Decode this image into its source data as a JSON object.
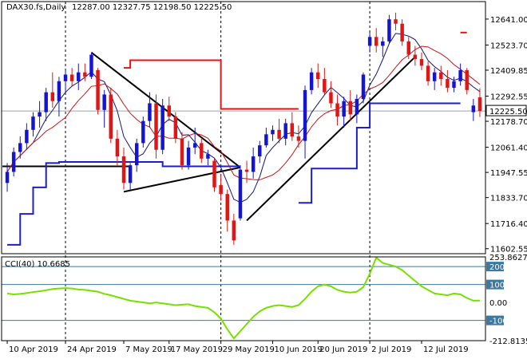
{
  "header": {
    "symbol": "DAX30.fs,Daily",
    "ohlc": "12287.00 12327.75 12198.50 12225.50"
  },
  "colors": {
    "bull": "#1414d2",
    "bear": "#e01616",
    "fast_ma": "#141478",
    "slow_ma": "#c81414",
    "support": "#1e1ec8",
    "resistance": "#e01616",
    "cci": "#78e000",
    "cci_level": "#3c78a0"
  },
  "chart_data": [
    {
      "type": "candlestick",
      "title": "DAX30.fs,Daily",
      "last_price": "12225.50",
      "ylim": [
        11580,
        12720
      ],
      "y_ticks": [
        "12641.00",
        "12523.70",
        "12409.85",
        "12292.55",
        "12178.70",
        "12061.40",
        "11947.55",
        "11833.70",
        "11716.40",
        "11602.55"
      ],
      "x_ticks": [
        "10 Apr 2019",
        "24 Apr 2019",
        "7 May 2019",
        "17 May 2019",
        "29 May 2019",
        "10 Jun 2019",
        "20 Jun 2019",
        "2 Jul 2019",
        "12 Jul 2019"
      ],
      "candles": [
        {
          "o": 11900,
          "h": 11990,
          "l": 11860,
          "c": 11950
        },
        {
          "o": 11950,
          "h": 12060,
          "l": 11930,
          "c": 12040
        },
        {
          "o": 12040,
          "h": 12110,
          "l": 12010,
          "c": 12080
        },
        {
          "o": 12080,
          "h": 12170,
          "l": 12050,
          "c": 12140
        },
        {
          "o": 12140,
          "h": 12220,
          "l": 12110,
          "c": 12200
        },
        {
          "o": 12200,
          "h": 12270,
          "l": 12150,
          "c": 12220
        },
        {
          "o": 12220,
          "h": 12330,
          "l": 12180,
          "c": 12310
        },
        {
          "o": 12310,
          "h": 12400,
          "l": 12240,
          "c": 12270
        },
        {
          "o": 12270,
          "h": 12380,
          "l": 12200,
          "c": 12360
        },
        {
          "o": 12360,
          "h": 12410,
          "l": 12300,
          "c": 12390
        },
        {
          "o": 12390,
          "h": 12420,
          "l": 12340,
          "c": 12360
        },
        {
          "o": 12360,
          "h": 12440,
          "l": 12320,
          "c": 12400
        },
        {
          "o": 12400,
          "h": 12440,
          "l": 12360,
          "c": 12380
        },
        {
          "o": 12380,
          "h": 12490,
          "l": 12370,
          "c": 12480
        },
        {
          "o": 12410,
          "h": 12420,
          "l": 12210,
          "c": 12230
        },
        {
          "o": 12230,
          "h": 12320,
          "l": 12150,
          "c": 12300
        },
        {
          "o": 12300,
          "h": 12330,
          "l": 12080,
          "c": 12100
        },
        {
          "o": 12100,
          "h": 12140,
          "l": 11980,
          "c": 12020
        },
        {
          "o": 12020,
          "h": 12060,
          "l": 11870,
          "c": 11900
        },
        {
          "o": 11900,
          "h": 11990,
          "l": 11870,
          "c": 11980
        },
        {
          "o": 11980,
          "h": 12100,
          "l": 11950,
          "c": 12080
        },
        {
          "o": 12080,
          "h": 12200,
          "l": 12060,
          "c": 12180
        },
        {
          "o": 12180,
          "h": 12310,
          "l": 12150,
          "c": 12260
        },
        {
          "o": 12260,
          "h": 12300,
          "l": 12010,
          "c": 12050
        },
        {
          "o": 12050,
          "h": 12280,
          "l": 12030,
          "c": 12250
        },
        {
          "o": 12250,
          "h": 12290,
          "l": 12180,
          "c": 12200
        },
        {
          "o": 12200,
          "h": 12220,
          "l": 12080,
          "c": 12100
        },
        {
          "o": 12100,
          "h": 12130,
          "l": 11960,
          "c": 11980
        },
        {
          "o": 11980,
          "h": 12090,
          "l": 11960,
          "c": 12060
        },
        {
          "o": 12060,
          "h": 12150,
          "l": 12030,
          "c": 12080
        },
        {
          "o": 12080,
          "h": 12100,
          "l": 11990,
          "c": 12010
        },
        {
          "o": 12010,
          "h": 12050,
          "l": 11980,
          "c": 12030
        },
        {
          "o": 12000,
          "h": 12010,
          "l": 11860,
          "c": 11880
        },
        {
          "o": 11890,
          "h": 11940,
          "l": 11820,
          "c": 11850
        },
        {
          "o": 11850,
          "h": 11870,
          "l": 11680,
          "c": 11730
        },
        {
          "o": 11730,
          "h": 11760,
          "l": 11620,
          "c": 11640
        },
        {
          "o": 11740,
          "h": 11980,
          "l": 11730,
          "c": 11960
        },
        {
          "o": 11960,
          "h": 12000,
          "l": 11900,
          "c": 11950
        },
        {
          "o": 11950,
          "h": 12060,
          "l": 11920,
          "c": 12020
        },
        {
          "o": 12020,
          "h": 12090,
          "l": 11990,
          "c": 12070
        },
        {
          "o": 12070,
          "h": 12150,
          "l": 12060,
          "c": 12120
        },
        {
          "o": 12120,
          "h": 12160,
          "l": 12090,
          "c": 12140
        },
        {
          "o": 12140,
          "h": 12190,
          "l": 12080,
          "c": 12100
        },
        {
          "o": 12100,
          "h": 12190,
          "l": 12070,
          "c": 12170
        },
        {
          "o": 12170,
          "h": 12220,
          "l": 12090,
          "c": 12110
        },
        {
          "o": 12110,
          "h": 12160,
          "l": 12060,
          "c": 12090
        },
        {
          "o": 12090,
          "h": 12340,
          "l": 12010,
          "c": 12320
        },
        {
          "o": 12320,
          "h": 12420,
          "l": 12300,
          "c": 12400
        },
        {
          "o": 12400,
          "h": 12440,
          "l": 12330,
          "c": 12370
        },
        {
          "o": 12370,
          "h": 12420,
          "l": 12300,
          "c": 12310
        },
        {
          "o": 12310,
          "h": 12360,
          "l": 12240,
          "c": 12260
        },
        {
          "o": 12260,
          "h": 12300,
          "l": 12160,
          "c": 12200
        },
        {
          "o": 12200,
          "h": 12290,
          "l": 12150,
          "c": 12270
        },
        {
          "o": 12270,
          "h": 12320,
          "l": 12180,
          "c": 12210
        },
        {
          "o": 12210,
          "h": 12300,
          "l": 12170,
          "c": 12280
        },
        {
          "o": 12280,
          "h": 12400,
          "l": 12260,
          "c": 12390
        },
        {
          "o": 12520,
          "h": 12580,
          "l": 12490,
          "c": 12560
        },
        {
          "o": 12560,
          "h": 12600,
          "l": 12490,
          "c": 12520
        },
        {
          "o": 12520,
          "h": 12560,
          "l": 12470,
          "c": 12540
        },
        {
          "o": 12540,
          "h": 12660,
          "l": 12530,
          "c": 12640
        },
        {
          "o": 12640,
          "h": 12670,
          "l": 12590,
          "c": 12620
        },
        {
          "o": 12620,
          "h": 12640,
          "l": 12520,
          "c": 12540
        },
        {
          "o": 12540,
          "h": 12560,
          "l": 12460,
          "c": 12480
        },
        {
          "o": 12480,
          "h": 12520,
          "l": 12430,
          "c": 12460
        },
        {
          "o": 12460,
          "h": 12490,
          "l": 12410,
          "c": 12430
        },
        {
          "o": 12430,
          "h": 12450,
          "l": 12340,
          "c": 12360
        },
        {
          "o": 12360,
          "h": 12420,
          "l": 12320,
          "c": 12400
        },
        {
          "o": 12400,
          "h": 12430,
          "l": 12340,
          "c": 12370
        },
        {
          "o": 12370,
          "h": 12410,
          "l": 12310,
          "c": 12330
        },
        {
          "o": 12330,
          "h": 12380,
          "l": 12310,
          "c": 12360
        },
        {
          "o": 12360,
          "h": 12440,
          "l": 12340,
          "c": 12410
        },
        {
          "o": 12410,
          "h": 12420,
          "l": 12300,
          "c": 12320
        },
        {
          "o": 12220,
          "h": 12280,
          "l": 12180,
          "c": 12250
        },
        {
          "o": 12287,
          "h": 12327.75,
          "l": 12198.5,
          "c": 12225.5
        }
      ]
    },
    {
      "type": "line",
      "title": "CCI(40) 10.6685",
      "ylim": [
        -212.8135,
        253.8627
      ],
      "y_ticks": [
        "253.8627",
        "200",
        "100",
        "0.00",
        "-100",
        "-212.8135"
      ],
      "levels": [
        200,
        100,
        -100
      ],
      "values": [
        50,
        45,
        48,
        52,
        58,
        62,
        68,
        75,
        78,
        80,
        78,
        72,
        70,
        65,
        60,
        48,
        40,
        30,
        20,
        10,
        5,
        0,
        -5,
        0,
        -5,
        -10,
        -15,
        -12,
        -10,
        -20,
        -25,
        -30,
        -55,
        -90,
        -150,
        -200,
        -160,
        -120,
        -80,
        -50,
        -30,
        -20,
        -15,
        -20,
        -25,
        -15,
        20,
        60,
        90,
        100,
        90,
        70,
        60,
        55,
        60,
        85,
        160,
        250,
        220,
        210,
        200,
        180,
        150,
        120,
        90,
        70,
        50,
        45,
        40,
        50,
        45,
        25,
        10,
        10.6685
      ]
    }
  ]
}
